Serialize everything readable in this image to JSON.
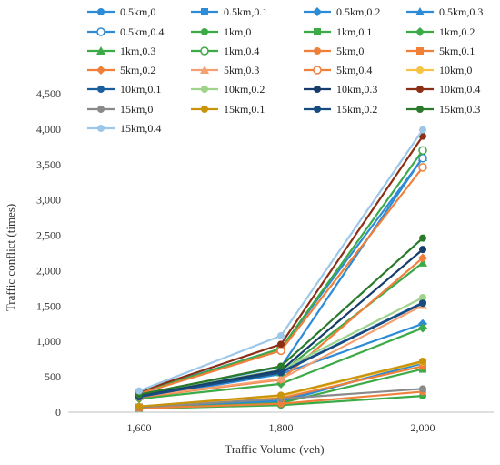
{
  "chart_data": {
    "type": "line",
    "title": "",
    "xlabel": "Traffic Volume (veh)",
    "ylabel": "Traffic conflict (times)",
    "categories": [
      "1,600",
      "1,800",
      "2,000"
    ],
    "ylim": [
      0,
      4500
    ],
    "yticks": [
      0,
      500,
      1000,
      1500,
      2000,
      2500,
      3000,
      3500,
      4000,
      4500
    ],
    "ytick_labels": [
      "0",
      "500",
      "1,000",
      "1,500",
      "2,000",
      "2,500",
      "3,000",
      "3,500",
      "4,000",
      "4,500"
    ],
    "grid": false,
    "legend_position": "top",
    "series": [
      {
        "name": "0.5km,0",
        "color": "#2e8bd6",
        "marker": "circle",
        "values": [
          60,
          150,
          700
        ]
      },
      {
        "name": "0.5km,0.1",
        "color": "#2e8bd6",
        "marker": "square",
        "values": [
          70,
          170,
          690
        ]
      },
      {
        "name": "0.5km,0.2",
        "color": "#2e8bd6",
        "marker": "diamond",
        "values": [
          200,
          540,
          1250
        ]
      },
      {
        "name": "0.5km,0.3",
        "color": "#2e8bd6",
        "marker": "triangle",
        "values": [
          250,
          640,
          3600
        ]
      },
      {
        "name": "0.5km,0.4",
        "color": "#2e8bd6",
        "marker": "open-circle",
        "values": [
          280,
          900,
          3590
        ]
      },
      {
        "name": "1km,0",
        "color": "#3daa48",
        "marker": "circle",
        "values": [
          50,
          100,
          230
        ]
      },
      {
        "name": "1km,0.1",
        "color": "#3daa48",
        "marker": "square",
        "values": [
          55,
          130,
          610
        ]
      },
      {
        "name": "1km,0.2",
        "color": "#3daa48",
        "marker": "diamond",
        "values": [
          190,
          400,
          1190
        ]
      },
      {
        "name": "1km,0.3",
        "color": "#3daa48",
        "marker": "triangle",
        "values": [
          230,
          560,
          2110
        ]
      },
      {
        "name": "1km,0.4",
        "color": "#3daa48",
        "marker": "open-circle",
        "values": [
          270,
          900,
          3700
        ]
      },
      {
        "name": "5km,0",
        "color": "#f07f3a",
        "marker": "circle",
        "values": [
          55,
          120,
          290
        ]
      },
      {
        "name": "5km,0.1",
        "color": "#f07f3a",
        "marker": "square",
        "values": [
          65,
          200,
          650
        ]
      },
      {
        "name": "5km,0.2",
        "color": "#f07f3a",
        "marker": "diamond",
        "values": [
          210,
          460,
          2180
        ]
      },
      {
        "name": "5km,0.3",
        "color": "#f4a073",
        "marker": "triangle",
        "values": [
          220,
          470,
          1510
        ]
      },
      {
        "name": "5km,0.4",
        "color": "#f07f3a",
        "marker": "open-circle",
        "values": [
          260,
          870,
          3460
        ]
      },
      {
        "name": "10km,0",
        "color": "#f6c342",
        "marker": "circle",
        "values": [
          75,
          230,
          710
        ]
      },
      {
        "name": "10km,0.1",
        "color": "#1a5e9e",
        "marker": "circle",
        "values": [
          215,
          570,
          1550
        ]
      },
      {
        "name": "10km,0.2",
        "color": "#9fd38a",
        "marker": "circle",
        "values": [
          240,
          600,
          1620
        ]
      },
      {
        "name": "10km,0.3",
        "color": "#173d6b",
        "marker": "circle",
        "values": [
          230,
          590,
          2300
        ]
      },
      {
        "name": "10km,0.4",
        "color": "#8c2f14",
        "marker": "circle",
        "values": [
          290,
          960,
          3900
        ]
      },
      {
        "name": "15km,0",
        "color": "#8a8a8a",
        "marker": "circle",
        "values": [
          70,
          190,
          330
        ]
      },
      {
        "name": "15km,0.1",
        "color": "#c9930a",
        "marker": "circle",
        "values": [
          80,
          240,
          720
        ]
      },
      {
        "name": "15km,0.2",
        "color": "#174c80",
        "marker": "circle",
        "values": [
          220,
          560,
          1540
        ]
      },
      {
        "name": "15km,0.3",
        "color": "#2b7a2b",
        "marker": "circle",
        "values": [
          250,
          650,
          2460
        ]
      },
      {
        "name": "15km,0.4",
        "color": "#9cc7e8",
        "marker": "circle",
        "values": [
          300,
          1080,
          3990
        ]
      }
    ]
  }
}
